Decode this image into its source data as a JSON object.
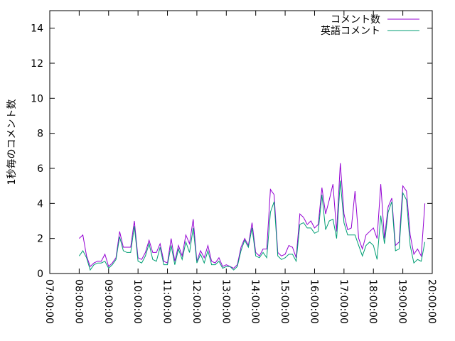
{
  "chart_data": {
    "type": "line",
    "y_label": "1秒毎のコメント数",
    "x": [
      8,
      8.125,
      8.25,
      8.375,
      8.5,
      8.625,
      8.75,
      8.875,
      9,
      9.125,
      9.25,
      9.375,
      9.5,
      9.625,
      9.75,
      9.875,
      10,
      10.125,
      10.25,
      10.375,
      10.5,
      10.625,
      10.75,
      10.875,
      11,
      11.125,
      11.25,
      11.375,
      11.5,
      11.625,
      11.75,
      11.875,
      12,
      12.125,
      12.25,
      12.375,
      12.5,
      12.625,
      12.75,
      12.875,
      13,
      13.125,
      13.25,
      13.375,
      13.5,
      13.625,
      13.75,
      13.875,
      14,
      14.125,
      14.25,
      14.375,
      14.5,
      14.625,
      14.75,
      14.875,
      15,
      15.125,
      15.25,
      15.375,
      15.5,
      15.625,
      15.75,
      15.875,
      16,
      16.125,
      16.25,
      16.375,
      16.5,
      16.625,
      16.75,
      16.875,
      17,
      17.125,
      17.25,
      17.375,
      17.5,
      17.625,
      17.75,
      17.875,
      18,
      18.125,
      18.25,
      18.375,
      18.5,
      18.625,
      18.75,
      18.875,
      19,
      19.125,
      19.25,
      19.375,
      19.5,
      19.625,
      19.75
    ],
    "series": [
      {
        "name": "コメント数",
        "color": "#9400d3",
        "values": [
          2.0,
          2.2,
          1.0,
          0.4,
          0.6,
          0.7,
          0.7,
          1.1,
          0.4,
          0.6,
          0.9,
          2.4,
          1.5,
          1.5,
          1.5,
          3.0,
          0.9,
          0.8,
          1.2,
          1.9,
          1.2,
          1.2,
          1.7,
          0.7,
          0.6,
          2.0,
          0.7,
          1.6,
          1.0,
          2.2,
          1.7,
          3.1,
          0.7,
          1.3,
          0.9,
          1.6,
          0.7,
          0.6,
          0.9,
          0.4,
          0.5,
          0.4,
          0.3,
          0.5,
          1.5,
          2.0,
          1.6,
          2.9,
          1.2,
          1.0,
          1.4,
          1.4,
          4.8,
          4.5,
          1.2,
          1.0,
          1.1,
          1.6,
          1.5,
          0.9,
          3.4,
          3.2,
          2.8,
          3.0,
          2.6,
          2.8,
          4.9,
          3.4,
          4.2,
          5.1,
          2.4,
          6.3,
          3.4,
          2.5,
          2.6,
          4.7,
          2.0,
          1.4,
          2.2,
          2.4,
          2.6,
          2.0,
          5.1,
          2.0,
          3.8,
          4.3,
          1.6,
          1.8,
          5.0,
          4.7,
          2.2,
          1.1,
          1.4,
          1.0,
          4.0
        ]
      },
      {
        "name": "英語コメント",
        "color": "#009e73",
        "values": [
          1.0,
          1.3,
          0.9,
          0.2,
          0.5,
          0.6,
          0.6,
          0.7,
          0.3,
          0.5,
          0.8,
          2.1,
          1.3,
          1.2,
          1.2,
          2.7,
          0.7,
          0.6,
          1.0,
          1.7,
          0.8,
          0.7,
          1.5,
          0.5,
          0.5,
          1.6,
          0.5,
          1.4,
          0.8,
          1.8,
          1.2,
          2.6,
          0.6,
          1.1,
          0.6,
          1.3,
          0.5,
          0.5,
          0.7,
          0.3,
          0.4,
          0.4,
          0.2,
          0.4,
          1.3,
          1.9,
          1.5,
          2.6,
          1.0,
          0.9,
          1.2,
          0.9,
          3.5,
          4.1,
          1.0,
          0.8,
          0.9,
          1.1,
          1.1,
          0.7,
          2.8,
          2.9,
          2.6,
          2.6,
          2.3,
          2.4,
          4.5,
          2.5,
          3.0,
          3.1,
          2.0,
          5.3,
          2.9,
          2.2,
          2.2,
          2.2,
          1.6,
          1.0,
          1.6,
          1.8,
          1.6,
          0.8,
          3.3,
          1.7,
          3.5,
          4.1,
          1.3,
          1.4,
          4.6,
          4.2,
          1.6,
          0.6,
          0.8,
          0.7,
          1.8
        ]
      }
    ],
    "xlim": [
      7,
      20
    ],
    "xticks": [
      {
        "value": 7,
        "label": "07:00:00"
      },
      {
        "value": 8,
        "label": "08:00:00"
      },
      {
        "value": 9,
        "label": "09:00:00"
      },
      {
        "value": 10,
        "label": "10:00:00"
      },
      {
        "value": 11,
        "label": "11:00:00"
      },
      {
        "value": 12,
        "label": "12:00:00"
      },
      {
        "value": 13,
        "label": "13:00:00"
      },
      {
        "value": 14,
        "label": "14:00:00"
      },
      {
        "value": 15,
        "label": "15:00:00"
      },
      {
        "value": 16,
        "label": "16:00:00"
      },
      {
        "value": 17,
        "label": "17:00:00"
      },
      {
        "value": 18,
        "label": "18:00:00"
      },
      {
        "value": 19,
        "label": "19:00:00"
      },
      {
        "value": 20,
        "label": "20:00:00"
      }
    ],
    "ylim": [
      0,
      15
    ],
    "yticks": [
      0,
      2,
      4,
      6,
      8,
      10,
      12,
      14
    ],
    "legend": "upper right"
  }
}
